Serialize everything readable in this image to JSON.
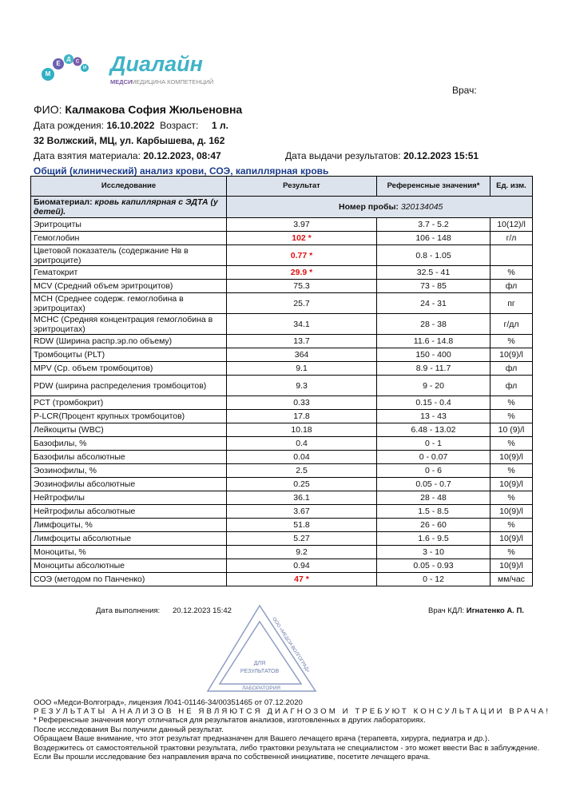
{
  "logo": {
    "circle_letters": [
      "М",
      "Е",
      "Д",
      "С",
      "И"
    ],
    "name": "Диалайн",
    "brand": "МЕДСИ",
    "tagline": "МЕДИЦИНА КОМПЕТЕНЦИЙ"
  },
  "doctor_label": "Врач:",
  "patient": {
    "fio_label": "ФИО:",
    "fio": "Калмакова София Жюльеновна",
    "dob_label": "Дата рождения:",
    "dob": "16.10.2022",
    "age_label": "Возраст:",
    "age": "1 л.",
    "address": "32 Волжский, МЦ, ул. Карбышева, д. 162",
    "sample_date_label": "Дата взятия материала:",
    "sample_date": "20.12.2023, 08:47",
    "result_date_label": "Дата выдачи результатов:",
    "result_date": "20.12.2023 15:51"
  },
  "test_title": "Общий (клинический) анализ крови, СОЭ, капиллярная кровь",
  "table": {
    "headers": [
      "Исследование",
      "Результат",
      "Референсные значения*",
      "Ед. изм."
    ],
    "biomaterial_label": "Биоматериал:",
    "biomaterial": "кровь капиллярная с ЭДТА (у детей).",
    "sample_no_label": "Номер пробы:",
    "sample_no": "320134045",
    "rows": [
      {
        "name": "Эритроциты",
        "result": "3.97",
        "reference": "3.7 - 5.2",
        "unit": "10(12)/l"
      },
      {
        "name": "Гемоглобин",
        "result": "102 *",
        "reference": "106 - 148",
        "unit": "г/л",
        "abnormal": true
      },
      {
        "name": "Цветовой показатель (содержание Нв в эритроците)",
        "result": "0.77 *",
        "reference": "0.8 - 1.05",
        "abnormal": true
      },
      {
        "name": "Гематокрит",
        "result": "29.9 *",
        "reference": "32.5 - 41",
        "unit": "%",
        "abnormal": true
      },
      {
        "name": "MCV (Средний объем эритроцитов)",
        "result": "75.3",
        "reference": "73 - 85",
        "unit": "фл"
      },
      {
        "name": "MCH (Среднее содерж.  гемоглобина в эритроцитах)",
        "result": "25.7",
        "reference": "24 - 31",
        "unit": "пг"
      },
      {
        "name": "MCHC (Средняя концентрация гемоглобина в эритроцитах)",
        "result": "34.1",
        "reference": "28 - 38",
        "unit": "г/дл"
      },
      {
        "name": "RDW (Ширина распр.эр.по объему)",
        "result": "13.7",
        "reference": "11.6 - 14.8",
        "unit": "%"
      },
      {
        "name": "Тромбоциты (PLT)",
        "result": "364",
        "reference": "150 - 400",
        "unit": "10(9)/l"
      },
      {
        "name": "MPV (Ср. объем тромбоцитов)",
        "result": "9.1",
        "reference": "8.9 - 11.7",
        "unit": "фл"
      },
      {
        "name": "PDW (ширина распределения тромбоцитов)",
        "result": "9.3",
        "reference": "9 - 20",
        "unit": "фл"
      },
      {
        "name": "PCT (тромбокрит)",
        "result": "0.33",
        "reference": "0.15 - 0.4",
        "unit": "%"
      },
      {
        "name": "P-LCR(Процент крупных тромбоцитов)",
        "result": "17.8",
        "reference": "13 - 43",
        "unit": "%"
      },
      {
        "name": "Лейкоциты (WBC)",
        "result": "10.18",
        "reference": "6.48 - 13.02",
        "unit": "10 (9)/l"
      },
      {
        "name": "Базофилы, %",
        "result": "0.4",
        "reference": "0 - 1",
        "unit": "%"
      },
      {
        "name": "Базофилы абсолютные",
        "result": "0.04",
        "reference": "0 - 0.07",
        "unit": "10(9)/l"
      },
      {
        "name": "Эозинофилы, %",
        "result": "2.5",
        "reference": "0 - 6",
        "unit": "%"
      },
      {
        "name": "Эозинофилы абсолютные",
        "result": "0.25",
        "reference": "0.05 - 0.7",
        "unit": "10(9)/l"
      },
      {
        "name": "Нейтрофилы",
        "result": "36.1",
        "reference": "28 - 48",
        "unit": "%"
      },
      {
        "name": "Нейтрофилы абсолютные",
        "result": "3.67",
        "reference": "1.5 - 8.5",
        "unit": "10(9)/l"
      },
      {
        "name": "Лимфоциты, %",
        "result": "51.8",
        "reference": "26 - 60",
        "unit": "%"
      },
      {
        "name": "Лимфоциты абсолютные",
        "result": "5.27",
        "reference": "1.6 - 9.5",
        "unit": "10(9)/l"
      },
      {
        "name": "Моноциты, %",
        "result": "9.2",
        "reference": "3 - 10",
        "unit": "%"
      },
      {
        "name": "Моноциты абсолютные",
        "result": "0.94",
        "reference": "0.05 - 0.93",
        "unit": "10(9)/l"
      },
      {
        "name": "СОЭ (методом по Панченко)",
        "result": "47 *",
        "reference": "0 - 12",
        "unit": "мм/час",
        "abnormal": true
      }
    ]
  },
  "signature": {
    "done_label": "Дата выполнения:",
    "done_date": "20.12.2023 15:42",
    "doctor_label": "Врач КДЛ:",
    "doctor": "Игнатенко А. П."
  },
  "stamp": {
    "org": "ООО «МЕДСИ-ВОЛГОГРАД»",
    "line1": "ДЛЯ",
    "line2": "РЕЗУЛЬТАТОВ",
    "bottom": "ЛАБОРАТОРИЯ"
  },
  "footer": {
    "license": "ООО «Медси-Волгоград», лицензия Л041-01146-34/00351465 от 07.12.2020",
    "warning": "РЕЗУЛЬТАТЫ АНАЛИЗОВ НЕ ЯВЛЯЮТСЯ ДИАГНОЗОМ И ТРЕБУЮТ КОНСУЛЬТАЦИИ ВРАЧА!",
    "notes": [
      "* Референсные значения могут отличаться для результатов анализов, изготовленных в других лабораториях.",
      "После исследования Вы получили данный результат.",
      "Обращаем Ваше внимание, что этот результат предназначен для Вашего лечащего врача (терапевта, хирурга, педиатра и др.).",
      "Воздержитесь от самостоятельной трактовки результата, либо трактовки результата не специалистом - это может ввести Вас в заблуждение.",
      "Если Вы прошли исследование без направления врача по собственной инициативе, посетите лечащего врача."
    ]
  }
}
